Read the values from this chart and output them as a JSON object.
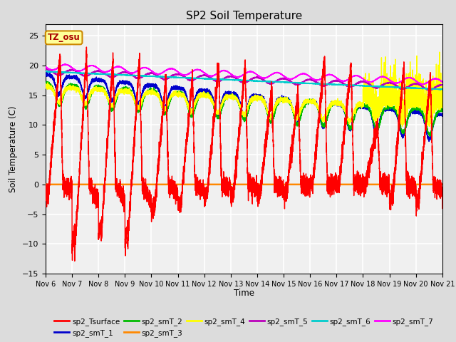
{
  "title": "SP2 Soil Temperature",
  "xlabel": "Time",
  "ylabel": "Soil Temperature (C)",
  "ylim": [
    -15,
    27
  ],
  "yticks": [
    -15,
    -10,
    -5,
    0,
    5,
    10,
    15,
    20,
    25
  ],
  "xtick_labels": [
    "Nov 6",
    "Nov 7",
    "Nov 8",
    "Nov 9",
    "Nov 10",
    "Nov 11",
    "Nov 12",
    "Nov 13",
    "Nov 14",
    "Nov 15",
    "Nov 16",
    "Nov 17",
    "Nov 18",
    "Nov 19",
    "Nov 20",
    "Nov 21"
  ],
  "legend_entries": [
    "sp2_Tsurface",
    "sp2_smT_1",
    "sp2_smT_2",
    "sp2_smT_3",
    "sp2_smT_4",
    "sp2_smT_5",
    "sp2_smT_6",
    "sp2_smT_7"
  ],
  "colors": {
    "sp2_Tsurface": "#FF0000",
    "sp2_smT_1": "#0000CC",
    "sp2_smT_2": "#00BB00",
    "sp2_smT_3": "#FF8800",
    "sp2_smT_4": "#FFFF00",
    "sp2_smT_5": "#BB00BB",
    "sp2_smT_6": "#00CCCC",
    "sp2_smT_7": "#FF00FF"
  },
  "tz_label": "TZ_osu",
  "bg_color": "#DCDCDC",
  "plot_bg": "#F0F0F0",
  "grid_color": "#FFFFFF",
  "annotation_box_color": "#FFFF99",
  "annotation_border_color": "#CC8800"
}
